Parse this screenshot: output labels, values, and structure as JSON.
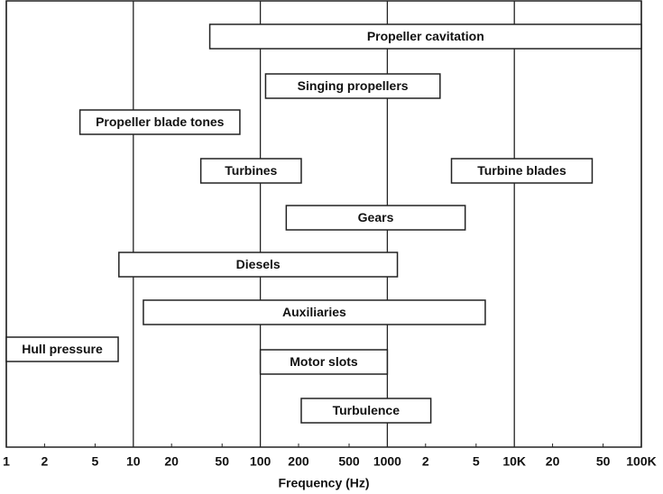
{
  "chart_data": {
    "type": "range-bar",
    "x_label": "Frequency (Hz)",
    "log_x": true,
    "categories": [
      "Propeller cavitation",
      "Singing propellers",
      "Propeller blade tones",
      "Turbines",
      "Turbine blades",
      "Gears",
      "Diesels",
      "Auxiliaries",
      "Hull pressure",
      "Motor slots",
      "Turbulence"
    ],
    "starts": [
      40,
      110,
      3.8,
      34,
      3200,
      160,
      7.7,
      12,
      1,
      100,
      210
    ],
    "ends": [
      100000,
      2600,
      69,
      210,
      41000,
      4100,
      1200,
      5900,
      7.6,
      1000,
      2200
    ],
    "color": "#ffffff",
    "xlim": [
      1,
      100000
    ],
    "xticks": [
      1,
      2,
      5,
      10,
      20,
      50,
      100,
      200,
      500,
      1000,
      {
        "value": 2000,
        "label": "2"
      },
      {
        "value": 5000,
        "label": "5"
      },
      {
        "value": 10000,
        "label": "10K"
      },
      {
        "value": 20000,
        "label": "20"
      },
      {
        "value": 50000,
        "label": "50"
      },
      {
        "value": 100000,
        "label": "100K"
      }
    ],
    "grid": true
  }
}
